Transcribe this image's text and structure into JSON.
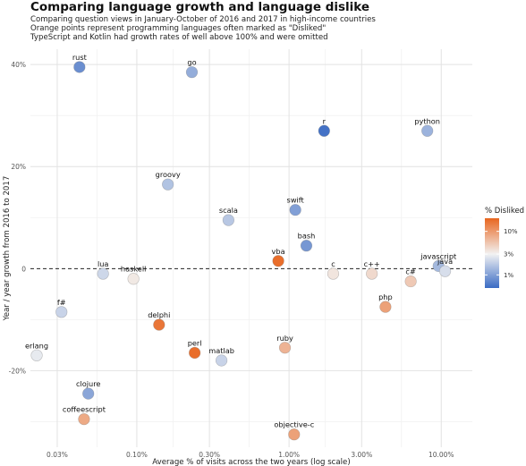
{
  "header": {
    "title": "Comparing language growth and language dislike",
    "subtitle_lines": [
      "Comparing question views in January-October of 2016 and 2017 in high-income countries",
      "Orange points represent programming languages often marked as \"Disliked\"",
      "TypeScript and Kotlin had growth rates of well above 100% and were omitted"
    ]
  },
  "chart_data": {
    "type": "scatter",
    "title": "Comparing language growth and language dislike",
    "xlabel": "Average % of visits across the two years (log scale)",
    "ylabel": "Year / year growth from 2016 to 2017",
    "x_scale": "log",
    "xlim": [
      0.02,
      16
    ],
    "ylim": [
      -35,
      43
    ],
    "x_ticks": [
      0.03,
      0.1,
      0.3,
      1,
      3,
      10
    ],
    "x_tick_labels": [
      "0.03%",
      "0.10%",
      "0.30%",
      "1.00%",
      "3.00%",
      "10.00%"
    ],
    "y_ticks": [
      -20,
      0,
      20,
      40
    ],
    "y_tick_labels": [
      "-20%",
      "0",
      "20%",
      "40%"
    ],
    "reference_line": {
      "y": 0,
      "style": "dashed"
    },
    "grid": true,
    "legend": {
      "title": "% Disliked",
      "position": "right",
      "tick_values": [
        10,
        3,
        1
      ],
      "tick_labels": [
        "10%",
        "3%",
        "1%"
      ],
      "colors": {
        "low": "#3a6bc4",
        "mid": "#f2f2f2",
        "high": "#e8661f"
      }
    },
    "points": [
      {
        "name": "rust",
        "x": 0.042,
        "y": 39.5,
        "disliked": 0.8
      },
      {
        "name": "go",
        "x": 0.23,
        "y": 38.5,
        "disliked": 1.2
      },
      {
        "name": "r",
        "x": 1.7,
        "y": 27,
        "disliked": 0.55
      },
      {
        "name": "python",
        "x": 8.1,
        "y": 27,
        "disliked": 1.3
      },
      {
        "name": "groovy",
        "x": 0.16,
        "y": 16.5,
        "disliked": 1.6
      },
      {
        "name": "scala",
        "x": 0.4,
        "y": 9.5,
        "disliked": 1.7
      },
      {
        "name": "swift",
        "x": 1.1,
        "y": 11.5,
        "disliked": 1.0
      },
      {
        "name": "bash",
        "x": 1.3,
        "y": 4.5,
        "disliked": 0.9
      },
      {
        "name": "vba",
        "x": 0.85,
        "y": 1.5,
        "disliked": 18
      },
      {
        "name": "lua",
        "x": 0.06,
        "y": -1,
        "disliked": 2.1
      },
      {
        "name": "haskell",
        "x": 0.095,
        "y": -2,
        "disliked": 3.4
      },
      {
        "name": "c",
        "x": 1.95,
        "y": -1,
        "disliked": 3.6
      },
      {
        "name": "c++",
        "x": 3.5,
        "y": -1,
        "disliked": 4.2
      },
      {
        "name": "javascript",
        "x": 9.6,
        "y": 0.5,
        "disliked": 1.4
      },
      {
        "name": "java",
        "x": 10.6,
        "y": -0.5,
        "disliked": 2.3
      },
      {
        "name": "c#",
        "x": 6.3,
        "y": -2.5,
        "disliked": 5.2
      },
      {
        "name": "php",
        "x": 4.3,
        "y": -7.5,
        "disliked": 9
      },
      {
        "name": "f#",
        "x": 0.032,
        "y": -8.5,
        "disliked": 2.0
      },
      {
        "name": "delphi",
        "x": 0.14,
        "y": -11,
        "disliked": 16
      },
      {
        "name": "perl",
        "x": 0.24,
        "y": -16.5,
        "disliked": 18
      },
      {
        "name": "matlab",
        "x": 0.36,
        "y": -18,
        "disliked": 2.0
      },
      {
        "name": "ruby",
        "x": 0.94,
        "y": -15.5,
        "disliked": 7
      },
      {
        "name": "erlang",
        "x": 0.022,
        "y": -17,
        "disliked": 2.7
      },
      {
        "name": "clojure",
        "x": 0.048,
        "y": -24.5,
        "disliked": 1.1
      },
      {
        "name": "coffeescript",
        "x": 0.045,
        "y": -29.5,
        "disliked": 8
      },
      {
        "name": "objective-c",
        "x": 1.08,
        "y": -32.5,
        "disliked": 9
      }
    ]
  }
}
